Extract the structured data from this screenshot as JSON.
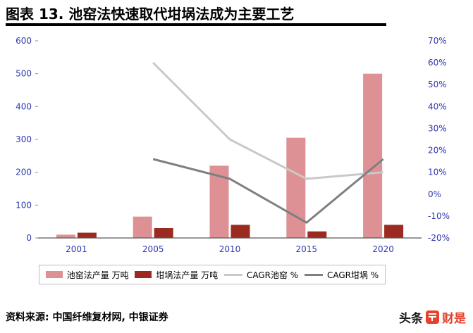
{
  "header": {
    "title": "图表 13. 池窑法快速取代坩埚法成为主要工艺"
  },
  "chart_data": {
    "type": "combo",
    "title": "池窑法快速取代坩埚法成为主要工艺",
    "categories": [
      "2001",
      "2005",
      "2010",
      "2015",
      "2020"
    ],
    "bar_series": [
      {
        "name": "池窑法产量 万吨",
        "color": "#dd9194",
        "axis": "left",
        "values": [
          10,
          65,
          220,
          305,
          500
        ]
      },
      {
        "name": "坩埚法产量 万吨",
        "color": "#9b2b21",
        "axis": "left",
        "values": [
          16,
          30,
          40,
          20,
          40
        ]
      }
    ],
    "line_series": [
      {
        "name": "CAGR池窑 %",
        "color": "#c9c9c9",
        "axis": "right",
        "values": [
          null,
          60,
          25,
          7,
          10
        ]
      },
      {
        "name": "CAGR坩埚 %",
        "color": "#7f7f7f",
        "axis": "right",
        "values": [
          null,
          16,
          7,
          -13,
          16
        ]
      }
    ],
    "left_axis": {
      "min": 0,
      "max": 600,
      "step": 100
    },
    "right_axis": {
      "min": -20,
      "max": 70,
      "step": 10,
      "suffix": "%"
    },
    "axis_label_color": "#3038b0",
    "grid": false,
    "legend_position": "bottom"
  },
  "footer": {
    "source": "资料来源: 中国纤维复材网, 中银证券"
  },
  "watermark": {
    "prefix": "头条",
    "suffix": "财是",
    "red": "#e8402d"
  }
}
